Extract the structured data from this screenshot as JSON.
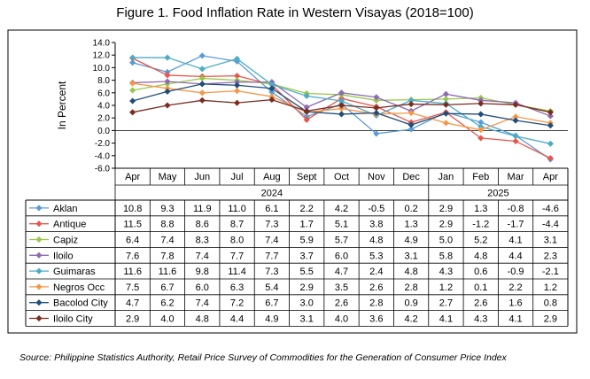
{
  "figure": {
    "title": "Figure 1. Food Inflation Rate in Western Visayas (2018=100)",
    "source": "Source: Philippine Statistics Authority, Retail Price Survey of Commodities for the Generation of Consumer Price Index"
  },
  "chart_data": {
    "type": "line",
    "title": "Figure 1. Food Inflation Rate in Western Visayas (2018=100)",
    "ylabel": "In Percent",
    "ylim": [
      -6.0,
      14.0
    ],
    "ytick_step": 2.0,
    "yticks": [
      "14.0",
      "12.0",
      "10.0",
      "8.0",
      "6.0",
      "4.0",
      "2.0",
      "0.0",
      "-2.0",
      "-4.0",
      "-6.0"
    ],
    "grid": false,
    "legend": "table-below",
    "categories": [
      "Apr",
      "May",
      "Jun",
      "Jul",
      "Aug",
      "Sept",
      "Oct",
      "Nov",
      "Dec",
      "Jan",
      "Feb",
      "Mar",
      "Apr"
    ],
    "year_groups": [
      {
        "label": "2024",
        "start": 0,
        "end": 8
      },
      {
        "label": "2025",
        "start": 9,
        "end": 12
      }
    ],
    "series": [
      {
        "name": "Aklan",
        "color": "#5b9bd5",
        "marker": "diamond",
        "values": [
          10.8,
          9.3,
          11.9,
          11.0,
          6.1,
          2.2,
          4.2,
          -0.5,
          0.2,
          2.9,
          1.3,
          -0.8,
          -4.6
        ],
        "labels": [
          "10.8",
          "9.3",
          "11.9",
          "11.0",
          "6.1",
          "2.2",
          "4.2",
          "-0.5",
          "0.2",
          "2.9",
          "1.3",
          "-0.8",
          "-4.6"
        ]
      },
      {
        "name": "Antique",
        "color": "#e8564a",
        "marker": "diamond",
        "values": [
          11.5,
          8.8,
          8.6,
          8.7,
          7.3,
          1.7,
          5.1,
          3.8,
          1.3,
          2.9,
          -1.2,
          -1.7,
          -4.4
        ],
        "labels": [
          "11.5",
          "8.8",
          "8.6",
          "8.7",
          "7.3",
          "1.7",
          "5.1",
          "3.8",
          "1.3",
          "2.9",
          "-1.2",
          "-1.7",
          "-4.4"
        ]
      },
      {
        "name": "Capiz",
        "color": "#9bc64a",
        "marker": "diamond",
        "values": [
          6.4,
          7.4,
          8.3,
          8.0,
          7.4,
          5.9,
          5.7,
          4.8,
          4.9,
          5.0,
          5.2,
          4.1,
          3.1
        ],
        "labels": [
          "6.4",
          "7.4",
          "8.3",
          "8.0",
          "7.4",
          "5.9",
          "5.7",
          "4.8",
          "4.9",
          "5.0",
          "5.2",
          "4.1",
          "3.1"
        ]
      },
      {
        "name": "Iloilo",
        "color": "#8c6bb1",
        "marker": "diamond",
        "values": [
          7.6,
          7.8,
          7.4,
          7.7,
          7.7,
          3.7,
          6.0,
          5.3,
          3.1,
          5.8,
          4.8,
          4.4,
          2.3
        ],
        "labels": [
          "7.6",
          "7.8",
          "7.4",
          "7.7",
          "7.7",
          "3.7",
          "6.0",
          "5.3",
          "3.1",
          "5.8",
          "4.8",
          "4.4",
          "2.3"
        ]
      },
      {
        "name": "Guimaras",
        "color": "#4bacc6",
        "marker": "diamond",
        "values": [
          11.6,
          11.6,
          9.8,
          11.4,
          7.3,
          5.5,
          4.7,
          2.4,
          4.8,
          4.3,
          0.6,
          -0.9,
          -2.1
        ],
        "labels": [
          "11.6",
          "11.6",
          "9.8",
          "11.4",
          "7.3",
          "5.5",
          "4.7",
          "2.4",
          "4.8",
          "4.3",
          "0.6",
          "-0.9",
          "-2.1"
        ]
      },
      {
        "name": "Negros Occ",
        "color": "#f79646",
        "marker": "diamond",
        "values": [
          7.5,
          6.7,
          6.0,
          6.3,
          5.4,
          2.9,
          3.5,
          2.6,
          2.8,
          1.2,
          0.1,
          2.2,
          1.2
        ],
        "labels": [
          "7.5",
          "6.7",
          "6.0",
          "6.3",
          "5.4",
          "2.9",
          "3.5",
          "2.6",
          "2.8",
          "1.2",
          "0.1",
          "2.2",
          "1.2"
        ]
      },
      {
        "name": "Bacolod City",
        "color": "#1f4e79",
        "marker": "diamond",
        "values": [
          4.7,
          6.2,
          7.4,
          7.2,
          6.7,
          3.0,
          2.6,
          2.8,
          0.9,
          2.7,
          2.6,
          1.6,
          0.8
        ],
        "labels": [
          "4.7",
          "6.2",
          "7.4",
          "7.2",
          "6.7",
          "3.0",
          "2.6",
          "2.8",
          "0.9",
          "2.7",
          "2.6",
          "1.6",
          "0.8"
        ]
      },
      {
        "name": "Iloilo City",
        "color": "#7b2c1f",
        "marker": "diamond",
        "values": [
          2.9,
          4.0,
          4.8,
          4.4,
          4.9,
          3.1,
          4.0,
          3.6,
          4.2,
          4.1,
          4.3,
          4.1,
          2.9
        ],
        "labels": [
          "2.9",
          "4.0",
          "4.8",
          "4.4",
          "4.9",
          "3.1",
          "4.0",
          "3.6",
          "4.2",
          "4.1",
          "4.3",
          "4.1",
          "2.9"
        ]
      }
    ]
  }
}
